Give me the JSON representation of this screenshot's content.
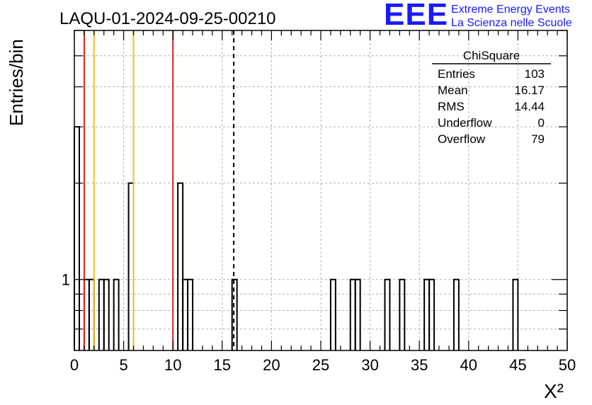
{
  "header": {
    "run_title": "LAQU-01-2024-09-25-00210"
  },
  "logo": {
    "mark": "EEE",
    "line1": "Extreme Energy Events",
    "line2": "La Scienza nelle Scuole",
    "color": "#1a1aff"
  },
  "stats_box": {
    "title": "ChiSquare",
    "rows": [
      {
        "label": "Entries",
        "value": "103"
      },
      {
        "label": "Mean",
        "value": "16.17"
      },
      {
        "label": "RMS",
        "value": "14.44"
      },
      {
        "label": "Underflow",
        "value": "0"
      },
      {
        "label": "Overflow",
        "value": "79"
      }
    ]
  },
  "chart_data": {
    "type": "bar",
    "histogram": true,
    "log_y": true,
    "xlabel": "X²",
    "ylabel": "Entries/bin",
    "xlim": [
      0,
      50
    ],
    "ylim": [
      0.6,
      6
    ],
    "x_ticks": [
      "0",
      "5",
      "10",
      "15",
      "20",
      "25",
      "30",
      "35",
      "40",
      "45",
      "50"
    ],
    "y_ticks": [
      "1"
    ],
    "grid": true,
    "bin_width": 0.5,
    "bins": [
      {
        "x0": 0.0,
        "count": 3
      },
      {
        "x0": 0.5,
        "count": 0
      },
      {
        "x0": 1.0,
        "count": 1
      },
      {
        "x0": 1.5,
        "count": 1
      },
      {
        "x0": 2.5,
        "count": 1
      },
      {
        "x0": 3.0,
        "count": 1
      },
      {
        "x0": 4.0,
        "count": 1
      },
      {
        "x0": 5.5,
        "count": 2
      },
      {
        "x0": 10.5,
        "count": 2
      },
      {
        "x0": 11.0,
        "count": 1
      },
      {
        "x0": 11.5,
        "count": 1
      },
      {
        "x0": 16.0,
        "count": 1
      },
      {
        "x0": 26.0,
        "count": 1
      },
      {
        "x0": 28.0,
        "count": 1
      },
      {
        "x0": 28.5,
        "count": 1
      },
      {
        "x0": 31.5,
        "count": 1
      },
      {
        "x0": 33.0,
        "count": 1
      },
      {
        "x0": 35.5,
        "count": 1
      },
      {
        "x0": 36.0,
        "count": 1
      },
      {
        "x0": 38.5,
        "count": 1
      },
      {
        "x0": 44.5,
        "count": 1
      }
    ],
    "reference_lines": [
      {
        "x": 1.0,
        "color": "#e02020",
        "style": "solid"
      },
      {
        "x": 2.0,
        "color": "#f0c020",
        "style": "solid"
      },
      {
        "x": 6.0,
        "color": "#f0c020",
        "style": "solid"
      },
      {
        "x": 10.0,
        "color": "#e02020",
        "style": "solid"
      },
      {
        "x": 16.17,
        "color": "#000000",
        "style": "dashed"
      }
    ]
  }
}
